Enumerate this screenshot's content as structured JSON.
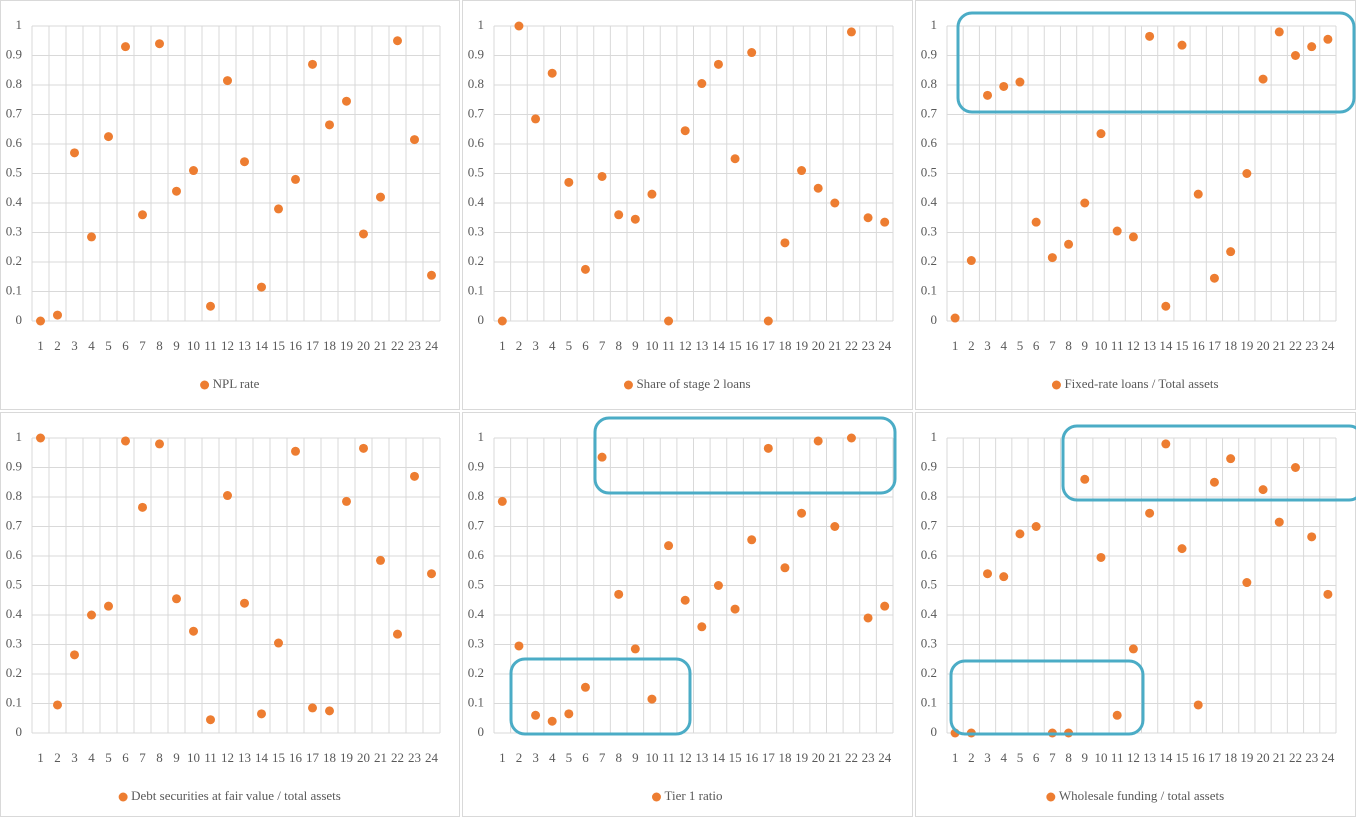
{
  "chart_data": [
    {
      "type": "scatter",
      "categories": [
        "1",
        "2",
        "3",
        "4",
        "5",
        "6",
        "7",
        "8",
        "9",
        "10",
        "11",
        "12",
        "13",
        "14",
        "15",
        "16",
        "17",
        "18",
        "19",
        "20",
        "21",
        "22",
        "23",
        "24"
      ],
      "series": [
        {
          "name": "NPL rate",
          "color": "#ed7d31",
          "values": [
            0,
            0.02,
            0.57,
            0.285,
            0.625,
            0.93,
            0.36,
            0.94,
            0.44,
            0.51,
            0.05,
            0.815,
            0.54,
            0.115,
            0.38,
            0.48,
            0.87,
            0.665,
            0.745,
            0.295,
            0.42,
            0.95,
            0.615,
            0.155
          ]
        }
      ],
      "ylim": [
        0,
        1
      ],
      "yticks": [
        0,
        0.1,
        0.2,
        0.3,
        0.4,
        0.5,
        0.6,
        0.7,
        0.8,
        0.9,
        1
      ],
      "grid": true,
      "legend": "bottom"
    },
    {
      "type": "scatter",
      "categories": [
        "1",
        "2",
        "3",
        "4",
        "5",
        "6",
        "7",
        "8",
        "9",
        "10",
        "11",
        "12",
        "13",
        "14",
        "15",
        "16",
        "17",
        "18",
        "19",
        "20",
        "21",
        "22",
        "23",
        "24"
      ],
      "series": [
        {
          "name": "Share of stage 2 loans",
          "color": "#ed7d31",
          "values": [
            0,
            1,
            0.685,
            0.84,
            0.47,
            0.175,
            0.49,
            0.36,
            0.345,
            0.43,
            0,
            0.645,
            0.805,
            0.87,
            0.55,
            0.91,
            0,
            0.265,
            0.51,
            0.45,
            0.4,
            0.98,
            0.35,
            0.335
          ]
        }
      ],
      "ylim": [
        0,
        1
      ],
      "yticks": [
        0,
        0.1,
        0.2,
        0.3,
        0.4,
        0.5,
        0.6,
        0.7,
        0.8,
        0.9,
        1
      ],
      "grid": true,
      "legend": "bottom"
    },
    {
      "type": "scatter",
      "categories": [
        "1",
        "2",
        "3",
        "4",
        "5",
        "6",
        "7",
        "8",
        "9",
        "10",
        "11",
        "12",
        "13",
        "14",
        "15",
        "16",
        "17",
        "18",
        "19",
        "20",
        "21",
        "22",
        "23",
        "24"
      ],
      "series": [
        {
          "name": "Fixed-rate loans / Total assets",
          "color": "#ed7d31",
          "values": [
            0.01,
            0.205,
            0.765,
            0.795,
            0.81,
            0.335,
            0.215,
            0.26,
            0.4,
            0.635,
            0.305,
            0.285,
            0.965,
            0.05,
            0.935,
            0.43,
            0.145,
            0.235,
            0.5,
            0.82,
            0.98,
            0.9,
            0.93,
            0.955
          ]
        }
      ],
      "ylim": [
        0,
        1
      ],
      "yticks": [
        0,
        0.1,
        0.2,
        0.3,
        0.4,
        0.5,
        0.6,
        0.7,
        0.8,
        0.9,
        1
      ],
      "grid": true,
      "legend": "bottom"
    },
    {
      "type": "scatter",
      "categories": [
        "1",
        "2",
        "3",
        "4",
        "5",
        "6",
        "7",
        "8",
        "9",
        "10",
        "11",
        "12",
        "13",
        "14",
        "15",
        "16",
        "17",
        "18",
        "19",
        "20",
        "21",
        "22",
        "23",
        "24"
      ],
      "series": [
        {
          "name": "Debt securities at fair value / total assets",
          "color": "#ed7d31",
          "values": [
            1,
            0.095,
            0.265,
            0.4,
            0.43,
            0.99,
            0.765,
            0.98,
            0.455,
            0.345,
            0.045,
            0.805,
            0.44,
            0.065,
            0.305,
            0.955,
            0.085,
            0.075,
            0.785,
            0.965,
            0.585,
            0.335,
            0.87,
            0.54
          ]
        }
      ],
      "ylim": [
        0,
        1
      ],
      "yticks": [
        0,
        0.1,
        0.2,
        0.3,
        0.4,
        0.5,
        0.6,
        0.7,
        0.8,
        0.9,
        1
      ],
      "grid": true,
      "legend": "bottom"
    },
    {
      "type": "scatter",
      "categories": [
        "1",
        "2",
        "3",
        "4",
        "5",
        "6",
        "7",
        "8",
        "9",
        "10",
        "11",
        "12",
        "13",
        "14",
        "15",
        "16",
        "17",
        "18",
        "19",
        "20",
        "21",
        "22",
        "23",
        "24"
      ],
      "series": [
        {
          "name": "Tier 1 ratio",
          "color": "#ed7d31",
          "values": [
            0.785,
            0.295,
            0.06,
            0.04,
            0.065,
            0.155,
            0.935,
            0.47,
            0.285,
            0.115,
            0.635,
            0.45,
            0.36,
            0.5,
            0.42,
            0.655,
            0.965,
            0.56,
            0.745,
            0.99,
            0.7,
            1,
            0.39,
            0.43
          ]
        }
      ],
      "ylim": [
        0,
        1
      ],
      "yticks": [
        0,
        0.1,
        0.2,
        0.3,
        0.4,
        0.5,
        0.6,
        0.7,
        0.8,
        0.9,
        1
      ],
      "grid": true,
      "legend": "bottom"
    },
    {
      "type": "scatter",
      "categories": [
        "1",
        "2",
        "3",
        "4",
        "5",
        "6",
        "7",
        "8",
        "9",
        "10",
        "11",
        "12",
        "13",
        "14",
        "15",
        "16",
        "17",
        "18",
        "19",
        "20",
        "21",
        "22",
        "23",
        "24"
      ],
      "series": [
        {
          "name": "Wholesale funding / total assets",
          "color": "#ed7d31",
          "values": [
            0,
            0,
            0.54,
            0.53,
            0.675,
            0.7,
            0,
            0,
            0.86,
            0.595,
            0.06,
            0.285,
            0.745,
            0.98,
            0.625,
            0.095,
            0.85,
            0.93,
            0.51,
            0.825,
            0.715,
            0.9,
            0.665,
            0.47
          ]
        }
      ],
      "ylim": [
        0,
        1
      ],
      "yticks": [
        0,
        0.1,
        0.2,
        0.3,
        0.4,
        0.5,
        0.6,
        0.7,
        0.8,
        0.9,
        1
      ],
      "grid": true,
      "legend": "bottom"
    }
  ]
}
